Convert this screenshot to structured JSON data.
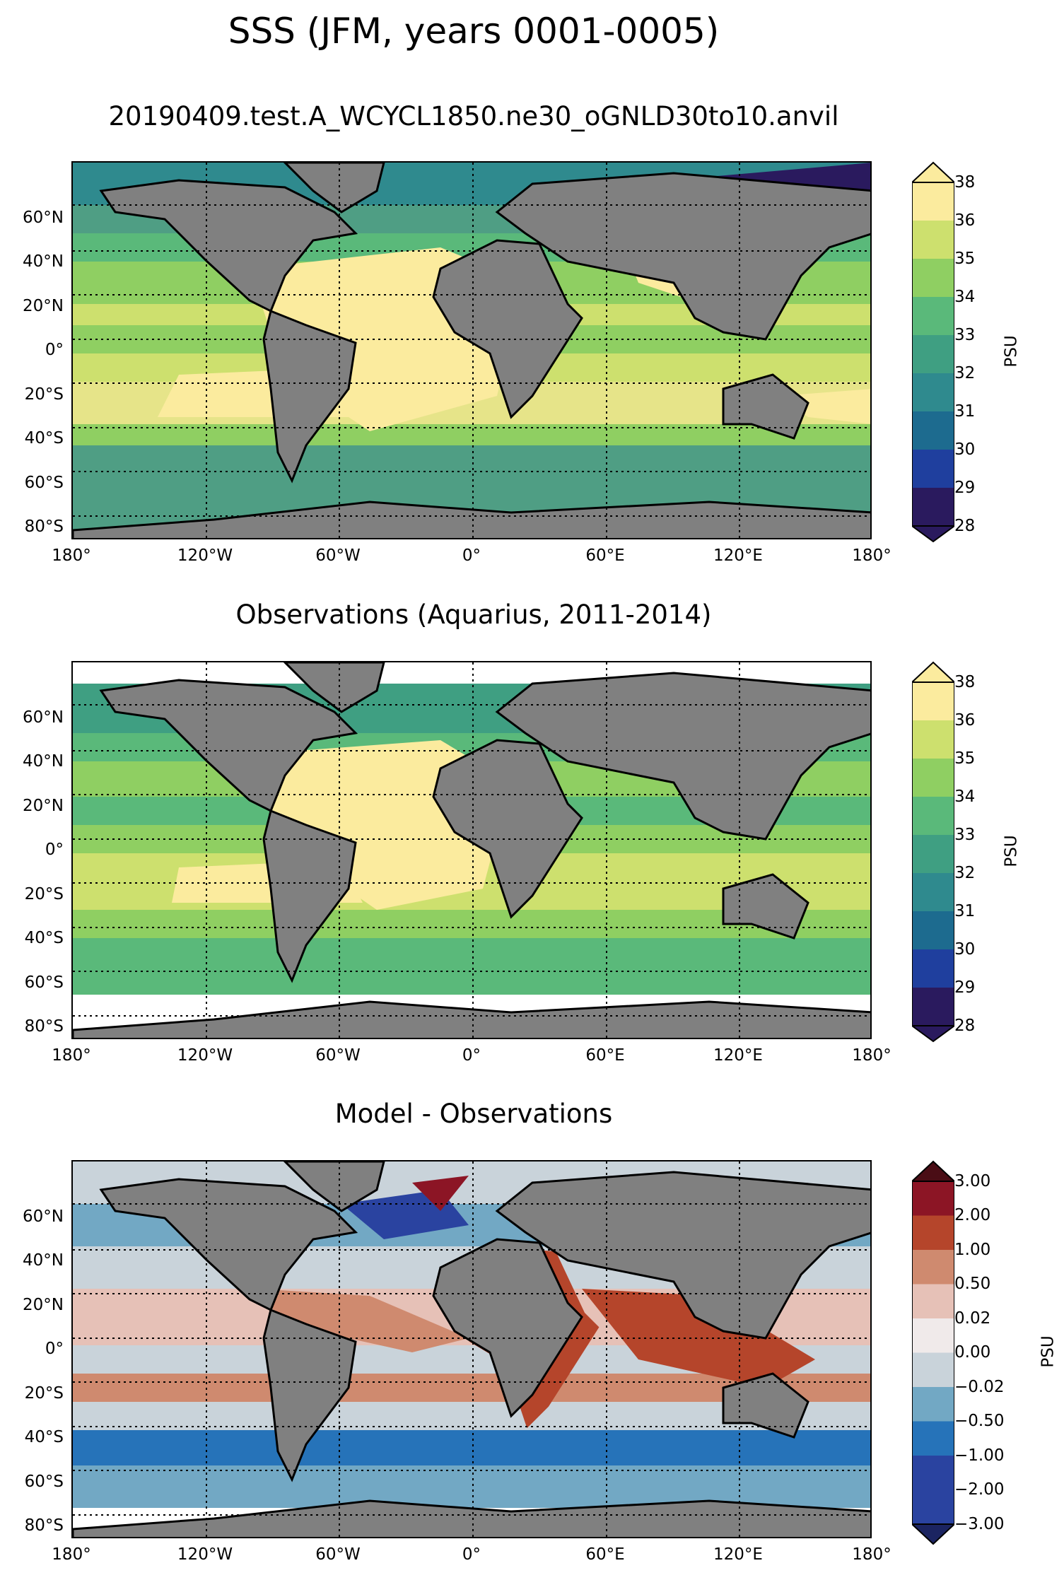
{
  "figure": {
    "title": "SSS (JFM, years 0001-0005)"
  },
  "axes": {
    "lat_labels": [
      "60°N",
      "40°N",
      "20°N",
      "0°",
      "20°S",
      "40°S",
      "60°S",
      "80°S"
    ],
    "lon_labels": [
      "180°",
      "120°W",
      "60°W",
      "0°",
      "60°E",
      "120°E",
      "180°"
    ]
  },
  "panels": [
    {
      "title": "20190409.test.A_WCYCL1850.ne30_oGNLD30to10.anvil",
      "colorbar": {
        "label": "PSU",
        "ticks": [
          "38",
          "36",
          "35",
          "34",
          "33",
          "32",
          "31",
          "30",
          "29",
          "28"
        ]
      }
    },
    {
      "title": "Observations (Aquarius, 2011-2014)",
      "colorbar": {
        "label": "PSU",
        "ticks": [
          "38",
          "36",
          "35",
          "34",
          "33",
          "32",
          "31",
          "30",
          "29",
          "28"
        ]
      }
    },
    {
      "title": "Model - Observations",
      "colorbar": {
        "label": "PSU",
        "ticks": [
          "3.00",
          "2.00",
          "1.00",
          "0.50",
          "0.02",
          "0.00",
          "−0.02",
          "−0.50",
          "−1.00",
          "−2.00",
          "−3.00"
        ]
      }
    }
  ],
  "colors": {
    "land": "#808080",
    "coastline": "#000000",
    "gridline": "#000000",
    "sss_scale": [
      "#2a1a5e",
      "#1f3f9e",
      "#1d6b8f",
      "#2f8a8e",
      "#3f9f82",
      "#5ab97a",
      "#8fcf62",
      "#cde06e",
      "#fbeb9e"
    ],
    "diff_scale": [
      "#1b2461",
      "#2a43a0",
      "#2673b9",
      "#72a8c4",
      "#c9d3da",
      "#f0eaea",
      "#e6c1b7",
      "#cf8a6f",
      "#b5452b",
      "#8c1525",
      "#4a0d15"
    ]
  }
}
